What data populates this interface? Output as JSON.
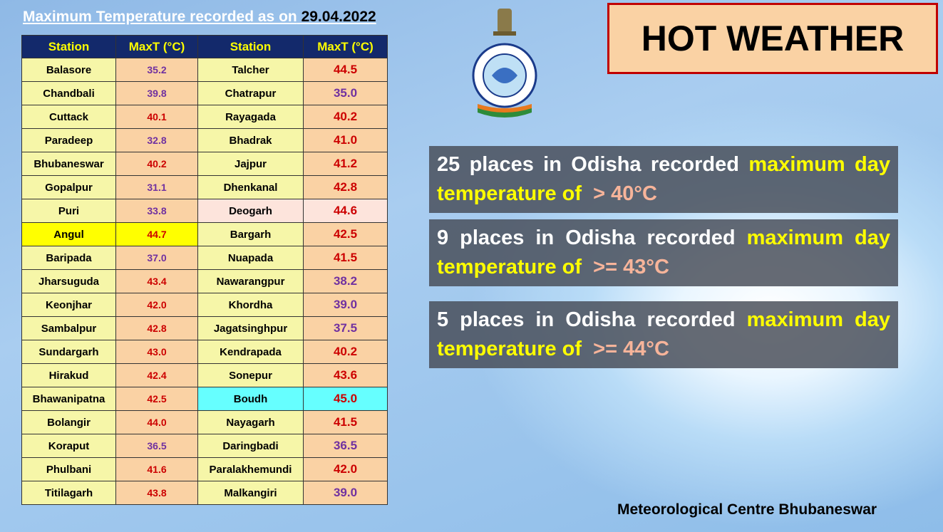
{
  "header": {
    "title": "Maximum Temperature recorded as on",
    "date": "29.04.2022",
    "banner": "HOT WEATHER"
  },
  "table": {
    "columns": [
      "Station",
      "MaxT (°C)",
      "Station",
      "MaxT (°C)"
    ],
    "rows": [
      [
        "Balasore",
        "35.2",
        "Talcher",
        "44.5"
      ],
      [
        "Chandbali",
        "39.8",
        "Chatrapur",
        "35.0"
      ],
      [
        "Cuttack",
        "40.1",
        "Rayagada",
        "40.2"
      ],
      [
        "Paradeep",
        "32.8",
        "Bhadrak",
        "41.0"
      ],
      [
        "Bhubaneswar",
        "40.2",
        "Jajpur",
        "41.2"
      ],
      [
        "Gopalpur",
        "31.1",
        "Dhenkanal",
        "42.8"
      ],
      [
        "Puri",
        "33.8",
        "Deogarh",
        "44.6"
      ],
      [
        "Angul",
        "44.7",
        "Bargarh",
        "42.5"
      ],
      [
        "Baripada",
        "37.0",
        "Nuapada",
        "41.5"
      ],
      [
        "Jharsuguda",
        "43.4",
        "Nawarangpur",
        "38.2"
      ],
      [
        "Keonjhar",
        "42.0",
        "Khordha",
        "39.0"
      ],
      [
        "Sambalpur",
        "42.8",
        "Jagatsinghpur",
        "37.5"
      ],
      [
        "Sundargarh",
        "43.0",
        "Kendrapada",
        "40.2"
      ],
      [
        "Hirakud",
        "42.4",
        "Sonepur",
        "43.6"
      ],
      [
        "Bhawanipatna",
        "42.5",
        "Boudh",
        "45.0"
      ],
      [
        "Bolangir",
        "44.0",
        "Nayagarh",
        "41.5"
      ],
      [
        "Koraput",
        "36.5",
        "Daringbadi",
        "36.5"
      ],
      [
        "Phulbani",
        "41.6",
        "Paralakhemundi",
        "42.0"
      ],
      [
        "Titilagarh",
        "43.8",
        "Malkangiri",
        "39.0"
      ]
    ]
  },
  "boxes": [
    {
      "text": "25 places in Odisha recorded",
      "highlight": "maximum day temperature of",
      "value": "> 40°C"
    },
    {
      "text": "9 places in Odisha recorded",
      "highlight": "maximum day temperature of",
      "value": ">= 43°C"
    },
    {
      "text": "5 places in Odisha recorded",
      "highlight": "maximum day temperature of",
      "value": ">= 44°C"
    }
  ],
  "footer": "Meteorological Centre Bhubaneswar"
}
